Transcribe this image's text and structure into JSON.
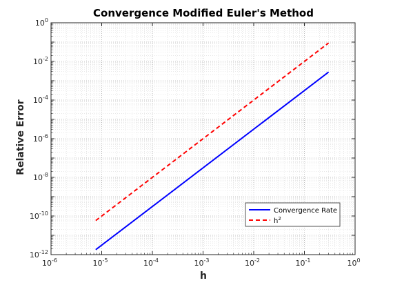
{
  "chart_data": {
    "type": "line",
    "title": "Convergence Modified Euler's Method",
    "xlabel": "h",
    "ylabel": "Relative Error",
    "xscale": "log",
    "yscale": "log",
    "xlim": [
      1e-06,
      1
    ],
    "ylim": [
      1e-12,
      1
    ],
    "grid": true,
    "minor_grid": true,
    "legend_position": "bottom-right",
    "x_ticks": [
      {
        "base": "10",
        "exp": "-6"
      },
      {
        "base": "10",
        "exp": "-5"
      },
      {
        "base": "10",
        "exp": "-4"
      },
      {
        "base": "10",
        "exp": "-3"
      },
      {
        "base": "10",
        "exp": "-2"
      },
      {
        "base": "10",
        "exp": "-1"
      },
      {
        "base": "10",
        "exp": "0"
      }
    ],
    "y_ticks": [
      {
        "base": "10",
        "exp": "-12"
      },
      {
        "base": "10",
        "exp": "-10"
      },
      {
        "base": "10",
        "exp": "-8"
      },
      {
        "base": "10",
        "exp": "-6"
      },
      {
        "base": "10",
        "exp": "-4"
      },
      {
        "base": "10",
        "exp": "-2"
      },
      {
        "base": "10",
        "exp": "0"
      }
    ],
    "series": [
      {
        "name": "Convergence Rate",
        "label_base": "Convergence Rate",
        "label_sup": "",
        "color": "#0000ff",
        "dash": "solid",
        "x": [
          7.63e-06,
          0.3
        ],
        "y": [
          1.8e-12,
          0.0028
        ]
      },
      {
        "name": "h^2",
        "label_base": "h",
        "label_sup": "2",
        "color": "#ff0000",
        "dash": "dashed",
        "x": [
          7.63e-06,
          0.3
        ],
        "y": [
          5.8e-11,
          0.09
        ]
      }
    ]
  }
}
